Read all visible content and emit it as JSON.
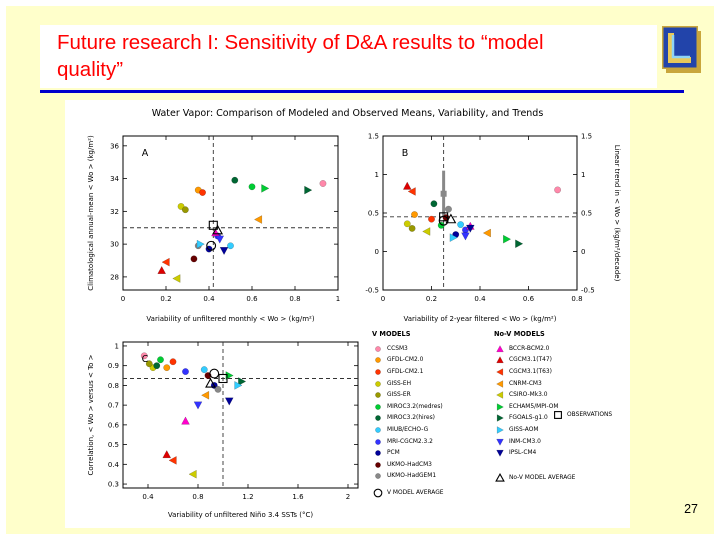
{
  "slide": {
    "title": "Future research I: Sensitivity of D&A results to “model\nquality”",
    "page_number": "27",
    "colors": {
      "background": "#FFFFCB",
      "title_text": "#FF0000",
      "rule": "#0000CC"
    }
  },
  "figure": {
    "title": "Water Vapor: Comparison of Modeled and Observed Means, Variability, and Trends"
  },
  "models": {
    "CCSM3": {
      "shape": "circle",
      "color": "#FF88AA"
    },
    "GFDL-CM2.0": {
      "shape": "circle",
      "color": "#FF9900"
    },
    "GFDL-CM2.1": {
      "shape": "circle",
      "color": "#FF3300"
    },
    "GISS-EH": {
      "shape": "circle",
      "color": "#CCCC00"
    },
    "GISS-ER": {
      "shape": "circle",
      "color": "#999900"
    },
    "MIROC3.2(medres)": {
      "shape": "circle",
      "color": "#00CC33"
    },
    "MIROC3.2(hires)": {
      "shape": "circle",
      "color": "#006633"
    },
    "MIUB/ECHO-G": {
      "shape": "circle",
      "color": "#33CCFF"
    },
    "MRI-CGCM2.3.2": {
      "shape": "circle",
      "color": "#3333FF"
    },
    "PCM": {
      "shape": "circle",
      "color": "#000099"
    },
    "UKMO-HadCM3": {
      "shape": "circle",
      "color": "#660000"
    },
    "UKMO-HadGEM1": {
      "shape": "circle",
      "color": "#888888"
    },
    "BCCR-BCM2.0": {
      "shape": "triangle-up",
      "color": "#FF00CC"
    },
    "CGCM3.1(T47)": {
      "shape": "triangle-up",
      "color": "#DD0000"
    },
    "CGCM3.1(T63)": {
      "shape": "triangle-left",
      "color": "#FF3300"
    },
    "CNRM-CM3": {
      "shape": "triangle-left",
      "color": "#FF9900"
    },
    "CSIRO-Mk3.0": {
      "shape": "triangle-left",
      "color": "#CCCC00"
    },
    "ECHAM5/MPI-OM": {
      "shape": "triangle-right",
      "color": "#00CC33"
    },
    "FGOALS-g1.0": {
      "shape": "triangle-right",
      "color": "#006633"
    },
    "GISS-AOM": {
      "shape": "triangle-right",
      "color": "#33CCFF"
    },
    "INM-CM3.0": {
      "shape": "triangle-down",
      "color": "#3333FF"
    },
    "IPSL-CM4": {
      "shape": "triangle-down",
      "color": "#000099"
    },
    "OBSERVATIONS": {
      "shape": "square-open",
      "color": "#000000"
    },
    "V MODEL AVERAGE": {
      "shape": "circle-open",
      "color": "#000000"
    },
    "No-V MODEL AVERAGE": {
      "shape": "triangle-open",
      "color": "#000000"
    }
  },
  "chart_data": [
    {
      "type": "scatter",
      "panel": "A",
      "xlabel": "Variability of unfiltered monthly < Wo > (kg/m²)",
      "ylabel": "Climatological annual-mean < Wo > (kg/m²)",
      "xlim": [
        0,
        1
      ],
      "ylim": [
        27.2,
        36.6
      ],
      "xticks": [
        0,
        0.2,
        0.4,
        0.6,
        0.8,
        1
      ],
      "yticks": [
        28,
        30,
        32,
        34,
        36
      ],
      "crosshair": {
        "x": 0.42,
        "y": 31.0
      },
      "points": [
        {
          "model": "CCSM3",
          "x": 0.93,
          "y": 33.7
        },
        {
          "model": "GFDL-CM2.0",
          "x": 0.35,
          "y": 33.3
        },
        {
          "model": "GFDL-CM2.1",
          "x": 0.37,
          "y": 33.15
        },
        {
          "model": "GISS-EH",
          "x": 0.27,
          "y": 32.3
        },
        {
          "model": "GISS-ER",
          "x": 0.29,
          "y": 32.1
        },
        {
          "model": "MIROC3.2(medres)",
          "x": 0.6,
          "y": 33.5
        },
        {
          "model": "MIROC3.2(hires)",
          "x": 0.52,
          "y": 33.9
        },
        {
          "model": "MIUB/ECHO-G",
          "x": 0.5,
          "y": 29.9
        },
        {
          "model": "MRI-CGCM2.3.2",
          "x": 0.44,
          "y": 30.5
        },
        {
          "model": "PCM",
          "x": 0.4,
          "y": 29.7
        },
        {
          "model": "UKMO-HadCM3",
          "x": 0.33,
          "y": 29.1
        },
        {
          "model": "UKMO-HadGEM1",
          "x": 0.35,
          "y": 29.9
        },
        {
          "model": "BCCR-BCM2.0",
          "x": 0.43,
          "y": 30.7
        },
        {
          "model": "CGCM3.1(T47)",
          "x": 0.18,
          "y": 28.4
        },
        {
          "model": "CGCM3.1(T63)",
          "x": 0.2,
          "y": 28.9
        },
        {
          "model": "CNRM-CM3",
          "x": 0.63,
          "y": 31.5
        },
        {
          "model": "CSIRO-Mk3.0",
          "x": 0.25,
          "y": 27.9
        },
        {
          "model": "ECHAM5/MPI-OM",
          "x": 0.66,
          "y": 33.4
        },
        {
          "model": "FGOALS-g1.0",
          "x": 0.86,
          "y": 33.3
        },
        {
          "model": "GISS-AOM",
          "x": 0.36,
          "y": 30.0
        },
        {
          "model": "INM-CM3.0",
          "x": 0.45,
          "y": 30.3
        },
        {
          "model": "IPSL-CM4",
          "x": 0.47,
          "y": 29.6
        },
        {
          "model": "OBSERVATIONS",
          "x": 0.42,
          "y": 31.15
        },
        {
          "model": "V MODEL AVERAGE",
          "x": 0.41,
          "y": 29.9
        },
        {
          "model": "No-V MODEL AVERAGE",
          "x": 0.44,
          "y": 30.85
        }
      ]
    },
    {
      "type": "scatter",
      "panel": "B",
      "xlabel": "Variability of 2-year filtered < Wo > (kg/m²)",
      "ylabel": "Linear trend in < Wo > (kg/m²/decade)",
      "xlim": [
        0,
        0.8
      ],
      "ylim": [
        -0.5,
        1.5
      ],
      "xticks": [
        0,
        0.2,
        0.4,
        0.6,
        0.8
      ],
      "yticks": [
        -0.5,
        0,
        0.5,
        1,
        1.5
      ],
      "crosshair": {
        "x": 0.25,
        "y": 0.45
      },
      "error_bar": {
        "x": 0.25,
        "y_from": 0.45,
        "y_to": 1.05,
        "marker_y": 0.75,
        "color": "#888888"
      },
      "points": [
        {
          "model": "CCSM3",
          "x": 0.72,
          "y": 0.8
        },
        {
          "model": "GFDL-CM2.0",
          "x": 0.13,
          "y": 0.48
        },
        {
          "model": "GFDL-CM2.1",
          "x": 0.2,
          "y": 0.42
        },
        {
          "model": "GISS-EH",
          "x": 0.1,
          "y": 0.36
        },
        {
          "model": "GISS-ER",
          "x": 0.12,
          "y": 0.3
        },
        {
          "model": "MIROC3.2(medres)",
          "x": 0.24,
          "y": 0.34
        },
        {
          "model": "MIROC3.2(hires)",
          "x": 0.21,
          "y": 0.62
        },
        {
          "model": "MIUB/ECHO-G",
          "x": 0.32,
          "y": 0.35
        },
        {
          "model": "MRI-CGCM2.3.2",
          "x": 0.34,
          "y": 0.28
        },
        {
          "model": "PCM",
          "x": 0.3,
          "y": 0.22
        },
        {
          "model": "UKMO-HadCM3",
          "x": 0.26,
          "y": 0.44
        },
        {
          "model": "UKMO-HadGEM1",
          "x": 0.27,
          "y": 0.55
        },
        {
          "model": "BCCR-BCM2.0",
          "x": 0.36,
          "y": 0.33
        },
        {
          "model": "CGCM3.1(T47)",
          "x": 0.1,
          "y": 0.85
        },
        {
          "model": "CGCM3.1(T63)",
          "x": 0.12,
          "y": 0.78
        },
        {
          "model": "CNRM-CM3",
          "x": 0.43,
          "y": 0.24
        },
        {
          "model": "CSIRO-Mk3.0",
          "x": 0.18,
          "y": 0.26
        },
        {
          "model": "ECHAM5/MPI-OM",
          "x": 0.51,
          "y": 0.16
        },
        {
          "model": "FGOALS-g1.0",
          "x": 0.56,
          "y": 0.1
        },
        {
          "model": "GISS-AOM",
          "x": 0.29,
          "y": 0.18
        },
        {
          "model": "INM-CM3.0",
          "x": 0.34,
          "y": 0.2
        },
        {
          "model": "IPSL-CM4",
          "x": 0.36,
          "y": 0.3
        },
        {
          "model": "OBSERVATIONS",
          "x": 0.25,
          "y": 0.45
        },
        {
          "model": "V MODEL AVERAGE",
          "x": 0.25,
          "y": 0.4
        },
        {
          "model": "No-V MODEL AVERAGE",
          "x": 0.28,
          "y": 0.42
        }
      ]
    },
    {
      "type": "scatter",
      "panel": "C",
      "xlabel": "Variability of unfiltered Niño 3.4 SSTs (°C)",
      "ylabel": "Correlation, < Wo > versus < To >",
      "xlim": [
        0.2,
        2.08
      ],
      "ylim": [
        0.28,
        1.02
      ],
      "xticks": [
        0.4,
        0.8,
        1.2,
        1.6,
        2
      ],
      "yticks": [
        0.3,
        0.4,
        0.5,
        0.6,
        0.7,
        0.8,
        0.9,
        1
      ],
      "crosshair": {
        "x": 1.0,
        "y": 0.835
      },
      "points": [
        {
          "model": "CCSM3",
          "x": 0.37,
          "y": 0.95
        },
        {
          "model": "GFDL-CM2.0",
          "x": 0.55,
          "y": 0.89
        },
        {
          "model": "GFDL-CM2.1",
          "x": 0.6,
          "y": 0.92
        },
        {
          "model": "GISS-EH",
          "x": 0.44,
          "y": 0.89
        },
        {
          "model": "GISS-ER",
          "x": 0.41,
          "y": 0.91
        },
        {
          "model": "MIROC3.2(medres)",
          "x": 0.5,
          "y": 0.93
        },
        {
          "model": "MIROC3.2(hires)",
          "x": 0.47,
          "y": 0.9
        },
        {
          "model": "MIUB/ECHO-G",
          "x": 0.85,
          "y": 0.88
        },
        {
          "model": "MRI-CGCM2.3.2",
          "x": 0.7,
          "y": 0.87
        },
        {
          "model": "PCM",
          "x": 0.93,
          "y": 0.8
        },
        {
          "model": "UKMO-HadCM3",
          "x": 0.88,
          "y": 0.85
        },
        {
          "model": "UKMO-HadGEM1",
          "x": 0.96,
          "y": 0.78
        },
        {
          "model": "BCCR-BCM2.0",
          "x": 0.7,
          "y": 0.62
        },
        {
          "model": "CGCM3.1(T47)",
          "x": 0.55,
          "y": 0.45
        },
        {
          "model": "CGCM3.1(T63)",
          "x": 0.6,
          "y": 0.42
        },
        {
          "model": "CNRM-CM3",
          "x": 0.86,
          "y": 0.75
        },
        {
          "model": "CSIRO-Mk3.0",
          "x": 0.76,
          "y": 0.35
        },
        {
          "model": "ECHAM5/MPI-OM",
          "x": 1.05,
          "y": 0.85
        },
        {
          "model": "FGOALS-g1.0",
          "x": 1.15,
          "y": 0.82
        },
        {
          "model": "GISS-AOM",
          "x": 1.12,
          "y": 0.8
        },
        {
          "model": "INM-CM3.0",
          "x": 0.8,
          "y": 0.7
        },
        {
          "model": "IPSL-CM4",
          "x": 1.05,
          "y": 0.72
        },
        {
          "model": "OBSERVATIONS",
          "x": 1.0,
          "y": 0.835
        },
        {
          "model": "V MODEL AVERAGE",
          "x": 0.93,
          "y": 0.86
        },
        {
          "model": "No-V MODEL AVERAGE",
          "x": 0.9,
          "y": 0.81
        }
      ]
    }
  ],
  "legend": {
    "col1_header": "V MODELS",
    "col2_header": "No-V MODELS",
    "v_models": [
      "CCSM3",
      "GFDL-CM2.0",
      "GFDL-CM2.1",
      "GISS-EH",
      "GISS-ER",
      "MIROC3.2(medres)",
      "MIROC3.2(hires)",
      "MIUB/ECHO-G",
      "MRI-CGCM2.3.2",
      "PCM",
      "UKMO-HadCM3",
      "UKMO-HadGEM1"
    ],
    "nov_models": [
      "BCCR-BCM2.0",
      "CGCM3.1(T47)",
      "CGCM3.1(T63)",
      "CNRM-CM3",
      "CSIRO-Mk3.0",
      "ECHAM5/MPI-OM",
      "FGOALS-g1.0",
      "GISS-AOM",
      "INM-CM3.0",
      "IPSL-CM4"
    ],
    "observations_label": "OBSERVATIONS",
    "v_average_label": "V MODEL AVERAGE",
    "nov_average_label": "No-V MODEL AVERAGE"
  }
}
